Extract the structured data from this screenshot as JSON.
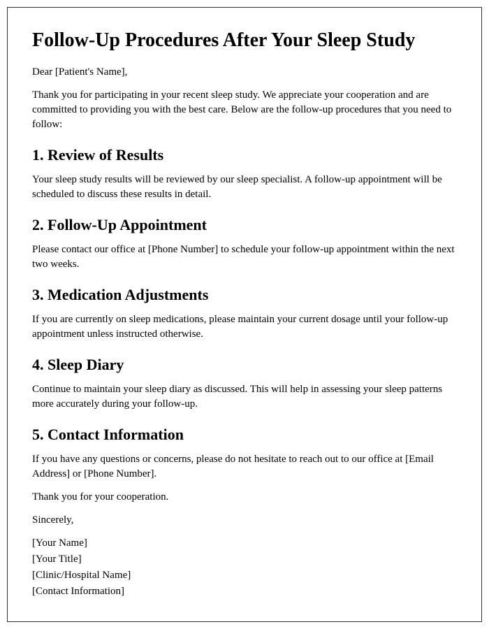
{
  "title": "Follow-Up Procedures After Your Sleep Study",
  "salutation": "Dear [Patient's Name],",
  "intro": "Thank you for participating in your recent sleep study. We appreciate your cooperation and are committed to providing you with the best care. Below are the follow-up procedures that you need to follow:",
  "sections": [
    {
      "heading": "1. Review of Results",
      "body": "Your sleep study results will be reviewed by our sleep specialist. A follow-up appointment will be scheduled to discuss these results in detail."
    },
    {
      "heading": "2. Follow-Up Appointment",
      "body": "Please contact our office at [Phone Number] to schedule your follow-up appointment within the next two weeks."
    },
    {
      "heading": "3. Medication Adjustments",
      "body": "If you are currently on sleep medications, please maintain your current dosage until your follow-up appointment unless instructed otherwise."
    },
    {
      "heading": "4. Sleep Diary",
      "body": "Continue to maintain your sleep diary as discussed. This will help in assessing your sleep patterns more accurately during your follow-up."
    },
    {
      "heading": "5. Contact Information",
      "body": "If you have any questions or concerns, please do not hesitate to reach out to our office at [Email Address] or [Phone Number]."
    }
  ],
  "thanks": "Thank you for your cooperation.",
  "closing": "Sincerely,",
  "signature": [
    "[Your Name]",
    "[Your Title]",
    "[Clinic/Hospital Name]",
    "[Contact Information]"
  ]
}
